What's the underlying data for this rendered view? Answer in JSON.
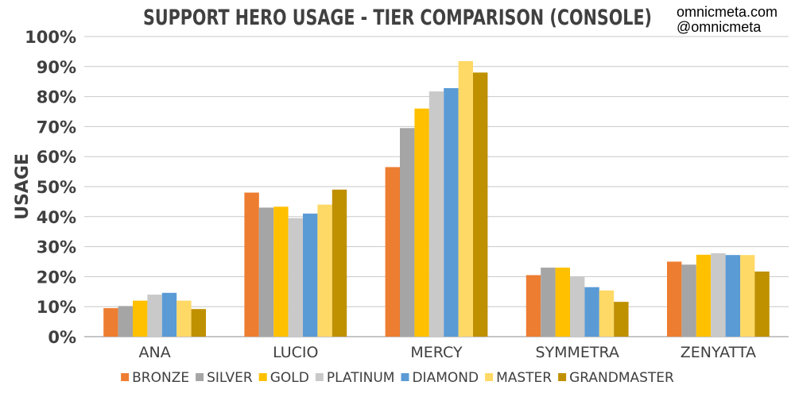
{
  "credits": [
    "omnicmeta.com",
    "@omnicmeta"
  ],
  "chart_data": {
    "type": "bar",
    "title": "SUPPORT HERO USAGE - TIER COMPARISON (CONSOLE)",
    "ylabel": "USAGE",
    "xlabel": "",
    "ylim": [
      0,
      100
    ],
    "yticks": [
      "0%",
      "10%",
      "20%",
      "30%",
      "40%",
      "50%",
      "60%",
      "70%",
      "80%",
      "90%",
      "100%"
    ],
    "grid": true,
    "legend_position": "bottom",
    "categories": [
      "ANA",
      "LUCIO",
      "MERCY",
      "SYMMETRA",
      "ZENYATTA"
    ],
    "series": [
      {
        "name": "BRONZE",
        "color": "#ed7d31",
        "values": [
          9.5,
          48,
          56.5,
          20.5,
          25
        ]
      },
      {
        "name": "SILVER",
        "color": "#a5a5a5",
        "values": [
          10.2,
          43,
          69.5,
          23,
          24
        ]
      },
      {
        "name": "GOLD",
        "color": "#ffc000",
        "values": [
          12,
          43.3,
          76,
          23,
          27.3
        ]
      },
      {
        "name": "PLATINUM",
        "color": "#c9c9c9",
        "values": [
          14,
          39.5,
          81.7,
          20,
          27.8
        ]
      },
      {
        "name": "DIAMOND",
        "color": "#5b9bd5",
        "values": [
          14.6,
          41,
          82.8,
          16.5,
          27.2
        ]
      },
      {
        "name": "MASTER",
        "color": "#ffd966",
        "values": [
          12,
          44,
          91.8,
          15.4,
          27.2
        ]
      },
      {
        "name": "GRANDMASTER",
        "color": "#bf9000",
        "values": [
          9.2,
          49,
          88,
          11.6,
          21.7
        ]
      }
    ]
  }
}
